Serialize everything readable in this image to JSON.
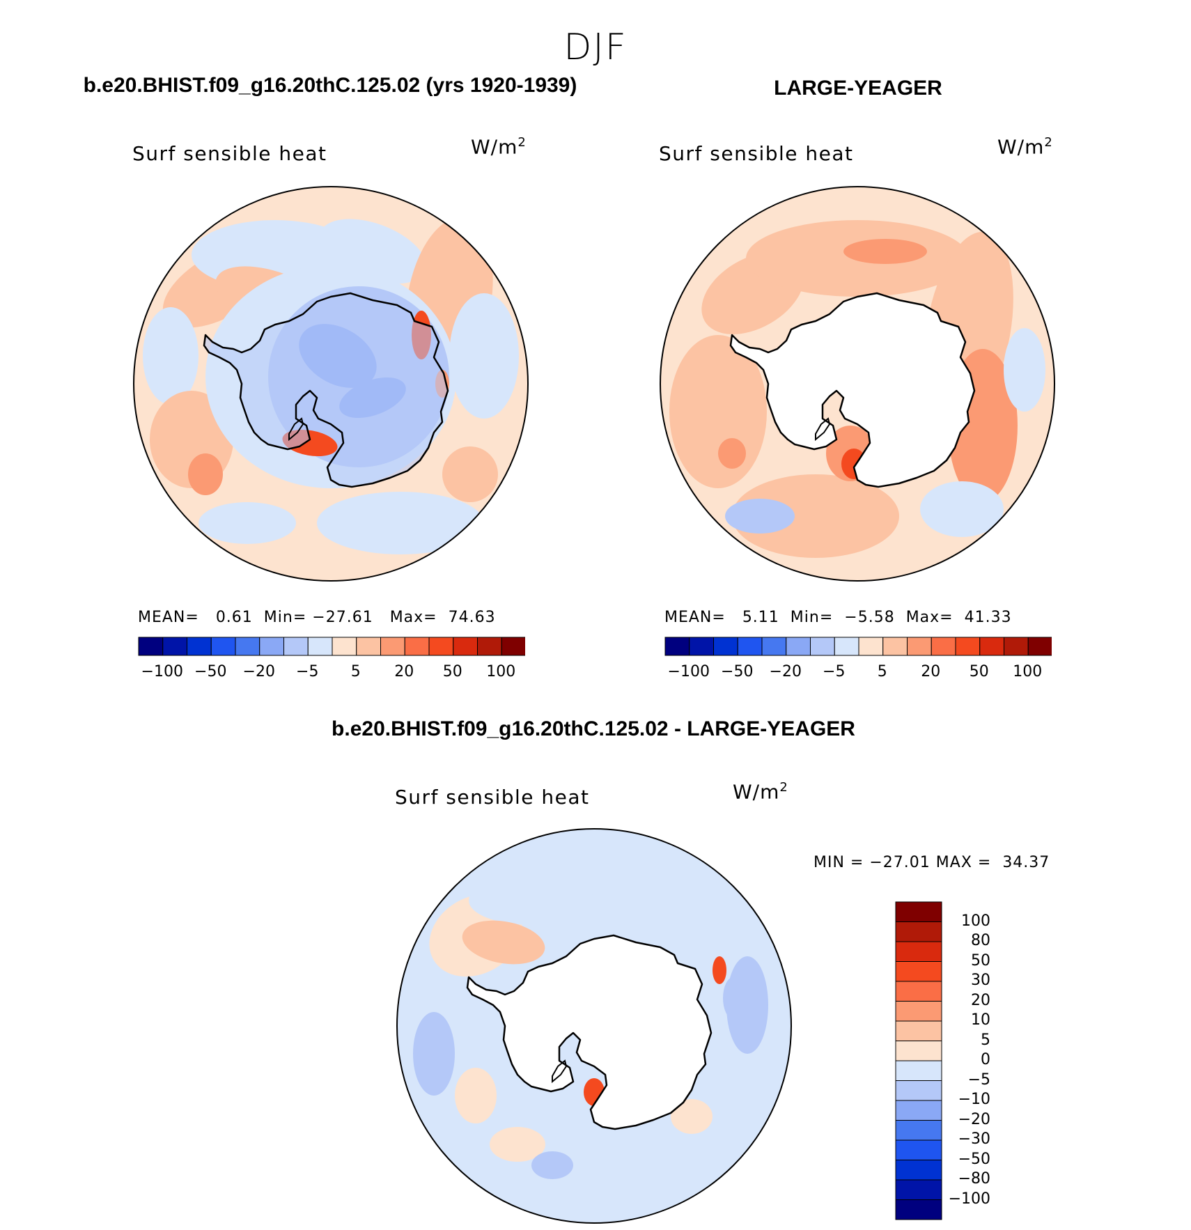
{
  "figure": {
    "title": "DJF"
  },
  "panels": [
    {
      "title": "b.e20.BHIST.f09_g16.20thC.125.02 (yrs 1920-1939)",
      "variable": "Surf sensible heat",
      "units_base": "W/m",
      "units_exp": "2",
      "stats": {
        "mean_label": "MEAN=",
        "mean": "0.61",
        "min_label": "Min=",
        "min": "−27.61",
        "max_label": "Max=",
        "max": "74.63"
      },
      "field": "model"
    },
    {
      "title": "LARGE-YEAGER",
      "variable": "Surf sensible heat",
      "units_base": "W/m",
      "units_exp": "2",
      "stats": {
        "mean_label": "MEAN=",
        "mean": "5.11",
        "min_label": "Min=",
        "min": "−5.58",
        "max_label": "Max=",
        "max": "41.33"
      },
      "field": "obs"
    },
    {
      "title": "b.e20.BHIST.f09_g16.20thC.125.02 - LARGE-YEAGER",
      "variable": "Surf sensible heat",
      "units_base": "W/m",
      "units_exp": "2",
      "stats": {
        "min_label": "MIN =",
        "min": "−27.01",
        "max_label": "MAX =",
        "max": "34.37"
      },
      "field": "diff"
    }
  ],
  "colorbars": {
    "horizontal": {
      "colors": [
        "#00007f",
        "#0014a8",
        "#0032d2",
        "#1f55f0",
        "#4678f0",
        "#8aa8f5",
        "#b4c8f8",
        "#d7e6fb",
        "#fde3cf",
        "#fcc3a3",
        "#fb9a73",
        "#fa6e46",
        "#f44a1f",
        "#d92a0e",
        "#b01a08",
        "#7f0000"
      ],
      "labels": [
        "−100",
        "−50",
        "−20",
        "−5",
        "5",
        "20",
        "50",
        "100"
      ]
    },
    "vertical": {
      "colors": [
        "#7f0000",
        "#b01a08",
        "#d92a0e",
        "#f44a1f",
        "#fa6e46",
        "#fb9a73",
        "#fcc3a3",
        "#fde3cf",
        "#d7e6fb",
        "#b4c8f8",
        "#8aa8f5",
        "#4678f0",
        "#1f55f0",
        "#0032d2",
        "#0014a8",
        "#00007f"
      ],
      "labels": [
        "100",
        "80",
        "50",
        "30",
        "20",
        "10",
        "5",
        "0",
        "−5",
        "−10",
        "−20",
        "−30",
        "−50",
        "−80",
        "−100"
      ]
    }
  },
  "colors": {
    "land": "#ffffff",
    "coast": "#000000",
    "pale_orange": "#fde3cf",
    "light_orange": "#fcc3a3",
    "orange": "#fb9a73",
    "red": "#f44a1f",
    "pale_blue": "#d7e6fb",
    "light_blue": "#b4c8f8",
    "blue": "#8aa8f5"
  }
}
